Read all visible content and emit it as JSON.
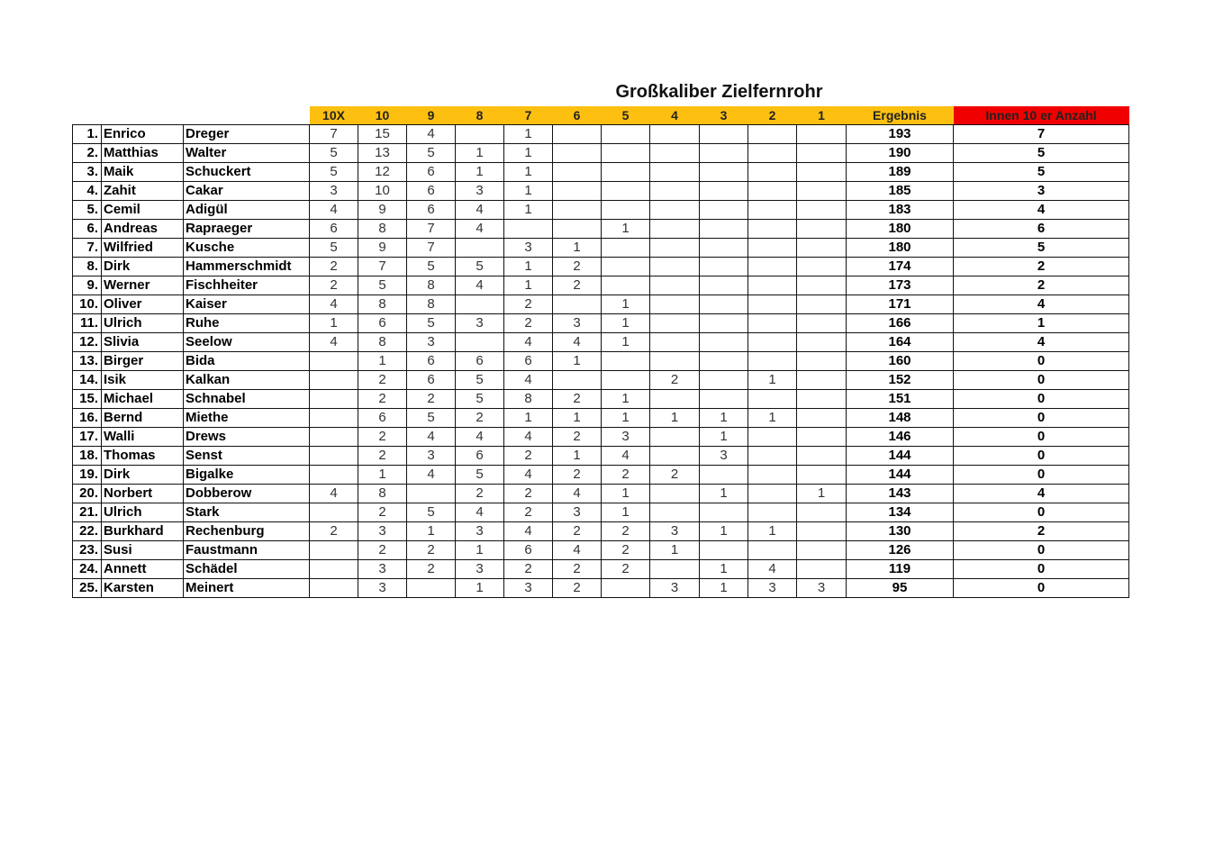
{
  "title": "Großkaliber Zielfernrohr",
  "header_color": "#fdc010",
  "accent_color": "#f00000",
  "columns": [
    "10X",
    "10",
    "9",
    "8",
    "7",
    "6",
    "5",
    "4",
    "3",
    "2",
    "1",
    "Ergebnis",
    "Innen 10 er Anzahl"
  ],
  "rows": [
    {
      "rank": "1.",
      "first": "Enrico",
      "last": "Dreger",
      "scores": [
        "7",
        "15",
        "4",
        "",
        "1",
        "",
        "",
        "",
        "",
        "",
        ""
      ],
      "total": "193",
      "inner": "7"
    },
    {
      "rank": "2.",
      "first": "Matthias",
      "last": "Walter",
      "scores": [
        "5",
        "13",
        "5",
        "1",
        "1",
        "",
        "",
        "",
        "",
        "",
        ""
      ],
      "total": "190",
      "inner": "5"
    },
    {
      "rank": "3.",
      "first": "Maik",
      "last": "Schuckert",
      "scores": [
        "5",
        "12",
        "6",
        "1",
        "1",
        "",
        "",
        "",
        "",
        "",
        ""
      ],
      "total": "189",
      "inner": "5"
    },
    {
      "rank": "4.",
      "first": "Zahit",
      "last": "Cakar",
      "scores": [
        "3",
        "10",
        "6",
        "3",
        "1",
        "",
        "",
        "",
        "",
        "",
        ""
      ],
      "total": "185",
      "inner": "3"
    },
    {
      "rank": "5.",
      "first": "Cemil",
      "last": "Adigül",
      "scores": [
        "4",
        "9",
        "6",
        "4",
        "1",
        "",
        "",
        "",
        "",
        "",
        ""
      ],
      "total": "183",
      "inner": "4"
    },
    {
      "rank": "6.",
      "first": "Andreas",
      "last": "Rapraeger",
      "scores": [
        "6",
        "8",
        "7",
        "4",
        "",
        "",
        "1",
        "",
        "",
        "",
        ""
      ],
      "total": "180",
      "inner": "6"
    },
    {
      "rank": "7.",
      "first": "Wilfried",
      "last": "Kusche",
      "scores": [
        "5",
        "9",
        "7",
        "",
        "3",
        "1",
        "",
        "",
        "",
        "",
        ""
      ],
      "total": "180",
      "inner": "5"
    },
    {
      "rank": "8.",
      "first": "Dirk",
      "last": "Hammerschmidt",
      "scores": [
        "2",
        "7",
        "5",
        "5",
        "1",
        "2",
        "",
        "",
        "",
        "",
        ""
      ],
      "total": "174",
      "inner": "2"
    },
    {
      "rank": "9.",
      "first": "Werner",
      "last": "Fischheiter",
      "scores": [
        "2",
        "5",
        "8",
        "4",
        "1",
        "2",
        "",
        "",
        "",
        "",
        ""
      ],
      "total": "173",
      "inner": "2"
    },
    {
      "rank": "10.",
      "first": "Oliver",
      "last": "Kaiser",
      "scores": [
        "4",
        "8",
        "8",
        "",
        "2",
        "",
        "1",
        "",
        "",
        "",
        ""
      ],
      "total": "171",
      "inner": "4"
    },
    {
      "rank": "11.",
      "first": "Ulrich",
      "last": "Ruhe",
      "scores": [
        "1",
        "6",
        "5",
        "3",
        "2",
        "3",
        "1",
        "",
        "",
        "",
        ""
      ],
      "total": "166",
      "inner": "1"
    },
    {
      "rank": "12.",
      "first": "Slivia",
      "last": "Seelow",
      "scores": [
        "4",
        "8",
        "3",
        "",
        "4",
        "4",
        "1",
        "",
        "",
        "",
        ""
      ],
      "total": "164",
      "inner": "4"
    },
    {
      "rank": "13.",
      "first": "Birger",
      "last": "Bida",
      "scores": [
        "",
        "1",
        "6",
        "6",
        "6",
        "1",
        "",
        "",
        "",
        "",
        ""
      ],
      "total": "160",
      "inner": "0"
    },
    {
      "rank": "14.",
      "first": "Isik",
      "last": "Kalkan",
      "scores": [
        "",
        "2",
        "6",
        "5",
        "4",
        "",
        "",
        "2",
        "",
        "1",
        ""
      ],
      "total": "152",
      "inner": "0"
    },
    {
      "rank": "15.",
      "first": "Michael",
      "last": "Schnabel",
      "scores": [
        "",
        "2",
        "2",
        "5",
        "8",
        "2",
        "1",
        "",
        "",
        "",
        ""
      ],
      "total": "151",
      "inner": "0"
    },
    {
      "rank": "16.",
      "first": "Bernd",
      "last": "Miethe",
      "scores": [
        "",
        "6",
        "5",
        "2",
        "1",
        "1",
        "1",
        "1",
        "1",
        "1",
        ""
      ],
      "total": "148",
      "inner": "0"
    },
    {
      "rank": "17.",
      "first": "Walli",
      "last": "Drews",
      "scores": [
        "",
        "2",
        "4",
        "4",
        "4",
        "2",
        "3",
        "",
        "1",
        "",
        ""
      ],
      "total": "146",
      "inner": "0"
    },
    {
      "rank": "18.",
      "first": "Thomas",
      "last": "Senst",
      "scores": [
        "",
        "2",
        "3",
        "6",
        "2",
        "1",
        "4",
        "",
        "3",
        "",
        ""
      ],
      "total": "144",
      "inner": "0"
    },
    {
      "rank": "19.",
      "first": "Dirk",
      "last": "Bigalke",
      "scores": [
        "",
        "1",
        "4",
        "5",
        "4",
        "2",
        "2",
        "2",
        "",
        "",
        ""
      ],
      "total": "144",
      "inner": "0"
    },
    {
      "rank": "20.",
      "first": "Norbert",
      "last": "Dobberow",
      "scores": [
        "4",
        "8",
        "",
        "2",
        "2",
        "4",
        "1",
        "",
        "1",
        "",
        "1"
      ],
      "total": "143",
      "inner": "4"
    },
    {
      "rank": "21.",
      "first": "Ulrich",
      "last": "Stark",
      "scores": [
        "",
        "2",
        "5",
        "4",
        "2",
        "3",
        "1",
        "",
        "",
        "",
        ""
      ],
      "total": "134",
      "inner": "0"
    },
    {
      "rank": "22.",
      "first": "Burkhard",
      "last": "Rechenburg",
      "scores": [
        "2",
        "3",
        "1",
        "3",
        "4",
        "2",
        "2",
        "3",
        "1",
        "1",
        ""
      ],
      "total": "130",
      "inner": "2"
    },
    {
      "rank": "23.",
      "first": "Susi",
      "last": "Faustmann",
      "scores": [
        "",
        "2",
        "2",
        "1",
        "6",
        "4",
        "2",
        "1",
        "",
        "",
        ""
      ],
      "total": "126",
      "inner": "0"
    },
    {
      "rank": "24.",
      "first": "Annett",
      "last": "Schädel",
      "scores": [
        "",
        "3",
        "2",
        "3",
        "2",
        "2",
        "2",
        "",
        "1",
        "4",
        ""
      ],
      "total": "119",
      "inner": "0"
    },
    {
      "rank": "25.",
      "first": "Karsten",
      "last": "Meinert",
      "scores": [
        "",
        "3",
        "",
        "1",
        "3",
        "2",
        "",
        "3",
        "1",
        "3",
        "3"
      ],
      "total": "95",
      "inner": "0"
    }
  ]
}
